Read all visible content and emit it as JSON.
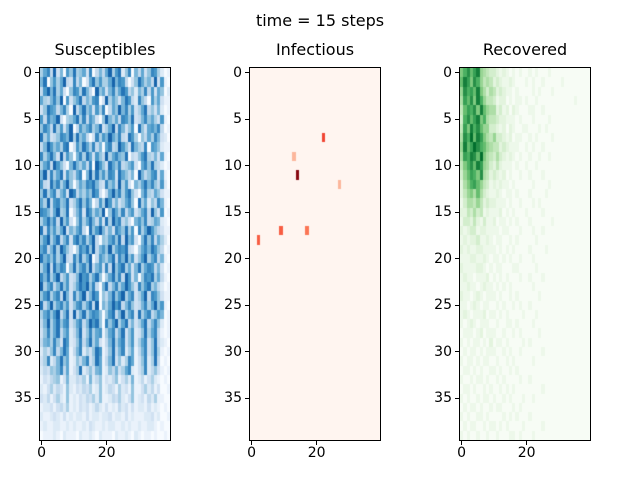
{
  "figure": {
    "suptitle": "time = 15 steps",
    "background": "#ffffff",
    "text_color": "#000000"
  },
  "chart_data": [
    {
      "type": "heatmap",
      "title": "Susceptibles",
      "colormap": "Blues",
      "rows": 40,
      "cols": 40,
      "xticks": [
        0,
        20
      ],
      "yticks": [
        0,
        5,
        10,
        15,
        20,
        25,
        30,
        35
      ],
      "encoding": "hex digit 0-f = colormap intensity 0-1",
      "grid_hex": [
        "58a4c37096b5683a04748c59b26a074836a95201",
        "7b06958c43a47038b69558c7a94036b8574c3910",
        "49c7b58306a95b740c6837a58b946275a4938602",
        "8547a6c09368b4759a03c58637b942a640958311",
        "36b9847a50c47b68395a0486c7a59358b4637201",
        "94a78c30568b5a497306c7584a96b347a6853910",
        "6a84b5937c04968a57b358c4a73690b63897a401",
        "b58346a97c5b68403a597c86a43b9506485a7320",
        "47c9685ab0396b85a4708a45c963b754a0986211",
        "a58b73c49607a5b83964c58a76b04369b5473810",
        "58a4c96307b7584a0c963b86a4579308a6b54201",
        "7c4a58b39648a07c5b695a93b86470c7469a3810",
        "943b7a58c60586a9b743a684c5930758b7a64920",
        "6b58a4793ca47586b93048c7a59b6307a5486311",
        "85c49a67b358b6a70495c947358a60b58264a710",
        "a9748c56b047a3b9586c06b85a479358a4c63901",
        "58b7a4c69306a58b7493b5c8a4630796a4587210",
        "b4a6958c3758a40b69c7473a86b590a58c964311",
        "69c58b47a39b7a58c40658a6b4c79307b6a48520",
        "8a47b5c96305a8b6c4796c58a9b43058a7b96401",
        "b796a58c43a6b58c049758b4a7c69369c58a4710",
        "58c4b7a906b58a6c4793a4c69b5837b58a947301",
        "a7b58c469347c9a58b6058b6a4c93706a9b58410",
        "c58a47b69358b9c6a407b47a58c963a69b574201",
        "69b58a4c73a58c47b90647b69c58a358c4a96311",
        "b47c58a69369a58b4c0758c9b47a6347a58c6910",
        "58a69c47b3c47b58a96069b47c58a3b58a469701",
        "47c58b69a358a47c9b60a69c58b47358b47a6201",
        "36a58b479247b36a589158a47b369236b58a4101",
        "4785a63b9236a47b583147b58a369258a36b4210",
        "2536a47b8147a2536b9136b47a258147a36b5101",
        "35a247b6812647a35b8147b3625a8136a25b4010",
        "243657a48135b24637812647358a2135a2463101",
        "1324561372243517246132461352712413521010",
        "2135243162132435126124315231611352413001",
        "3241352161213243526112435213612314251100",
        "1223134251213231242131214231312213121010",
        "2112321312122131221223122131211122312001",
        "1211221121211213211212211212112112210100",
        "0111210211102112102111021121021011010010"
      ]
    },
    {
      "type": "heatmap",
      "title": "Infectious",
      "colormap": "Reds",
      "rows": 40,
      "cols": 40,
      "xticks": [
        0,
        20
      ],
      "yticks": [
        0,
        5,
        10,
        15,
        20,
        25,
        30,
        35
      ],
      "encoding": "hex digit 0-f = colormap intensity 0-1",
      "grid_hex": [
        "0000000000000000000000000000000000000000",
        "0000000000000000000000000000000000000000",
        "0000000000000000000000000000000000000000",
        "0000000000000000000000000000000000000000",
        "0000000000000000000000000000000000000000",
        "0000000000000000000000000000000000000000",
        "0000000000000000000000000000000000000000",
        "0000000000000000000000900000000000000000",
        "0000000000000000000000000000000000000000",
        "0000000000000400000000000000000000000000",
        "0000000000000000000000000000000000000000",
        "00000000000000e0000000000000000000000000",
        "0000000000000000000000000004000000000000",
        "0000000000000000000000000000000000000000",
        "0000000000000000000000000000000000000000",
        "0000000000000000000000000000000000000000",
        "0000000000000000000000000000000000000000",
        "0000000008000000070000000000000000000000",
        "0080000000000000000000000000000000000000",
        "0000000000000000000000000000000000000000",
        "0000000000000000000000000000000000000000",
        "0000000000000000000000000000000000000000",
        "0000000000000000000000000000000000000000",
        "0000000000000000000000000000000000000000",
        "0000000000000000000000000000000000000000",
        "0000000000000000000000000000000000000000",
        "0000000000000000000000000000000000000000",
        "0000000000000000000000000000000000000000",
        "0000000000000000000000000000000000000000",
        "0000000000000000000000000000000000000000",
        "0000000000000000000000000000000000000000",
        "0000000000000000000000000000000000000000",
        "0000000000000000000000000000000000000000",
        "0000000000000000000000000000000000000000",
        "0000000000000000000000000000000000000000",
        "0000000000000000000000000000000000000000",
        "0000000000000000000000000000000000000000",
        "0000000000000000000000000000000000000000",
        "0000000000000000000000000000000000000000",
        "0000000000000000000000000000000000000000"
      ]
    },
    {
      "type": "heatmap",
      "title": "Recovered",
      "colormap": "Greens",
      "rows": 40,
      "cols": 40,
      "xticks": [
        0,
        20
      ],
      "yticks": [
        0,
        5,
        10,
        15,
        20,
        25,
        30,
        35
      ],
      "encoding": "hex digit 0-f = colormap intensity 0-1",
      "grid_hex": [
        "79b8ac654332121010100101000100 0000000000",
        "8ca7b964542321121000101001000 00100000000",
        "6b9a8c753542321101000010100010 0000000000",
        "5a8b7c964431220101101001000000 0000010000",
        "48a9b7c865523120210001100100000000000000",
        "39b8ac795443221110100010000100 0000000000",
        "4a7c9b866332120210011000101000 0000000000",
        "5b9d8ca754633212011001010000100000000000",
        "6c8adb986544232111001010010000 0000000000",
        "5a9cb8d754353212101001001001000000000000",
        "479b8ca653242111010010010000000000000000",
        "368a97b542321201001001000100000000000000",
        "2579a86431212110100000100001000000000000",
        "2467585321121011010001000010000000000000",
        "1355464232211101001000101000000000000000",
        "2243534121112010100010000100000000000000",
        "1332421311201101010001000000100000000000",
        "2123312211110110001000100100000000000000",
        "1212231121011001010000010000000000000000",
        "2121122111101010100001000010000000000000",
        "1112211210110101001000100000000000000000",
        "2111122101011000110000010000000000000000",
        "1211011120101010001001000100000000000000",
        "1121101211010101000000100000000000000000",
        "2110121011101001010000001000000000000000",
        "1101210110010100101001000000000000000000",
        "1210111201101010000100010000000000000000",
        "1012101110010011010000100000000000000000",
        "0111012011100100101000001000000000000000",
        "1010110102011010000101000000000000000000",
        "0101101011100101001000000100000000000000",
        "1011010110010010100000100000000000000000",
        "0110101001101001010000000000000000000000",
        "1001011010010100001001000000000000000000",
        "0110100101001010100000000100000000000000",
        "1010010110100101000100100000000000000000",
        "0101101001011000101000000000000000000000",
        "1010011010000101010001000000000000000000",
        "0101100101101010000100000100000000000000",
        "1010010010010001101000100000000000000000"
      ]
    }
  ],
  "colormaps": {
    "Blues": [
      "#f7fbff",
      "#deebf7",
      "#c6dbef",
      "#9ecae1",
      "#6baed6",
      "#4292c6",
      "#2171b5",
      "#08519c",
      "#08306b"
    ],
    "Reds": [
      "#fff5f0",
      "#fee0d2",
      "#fcbba1",
      "#fc9272",
      "#fb6a4a",
      "#ef3b2c",
      "#cb181d",
      "#a50f15",
      "#67000d"
    ],
    "Greens": [
      "#f7fcf5",
      "#e5f5e0",
      "#c7e9c0",
      "#a1d99b",
      "#74c476",
      "#41ab5d",
      "#238b45",
      "#006d2c",
      "#00441b"
    ]
  }
}
